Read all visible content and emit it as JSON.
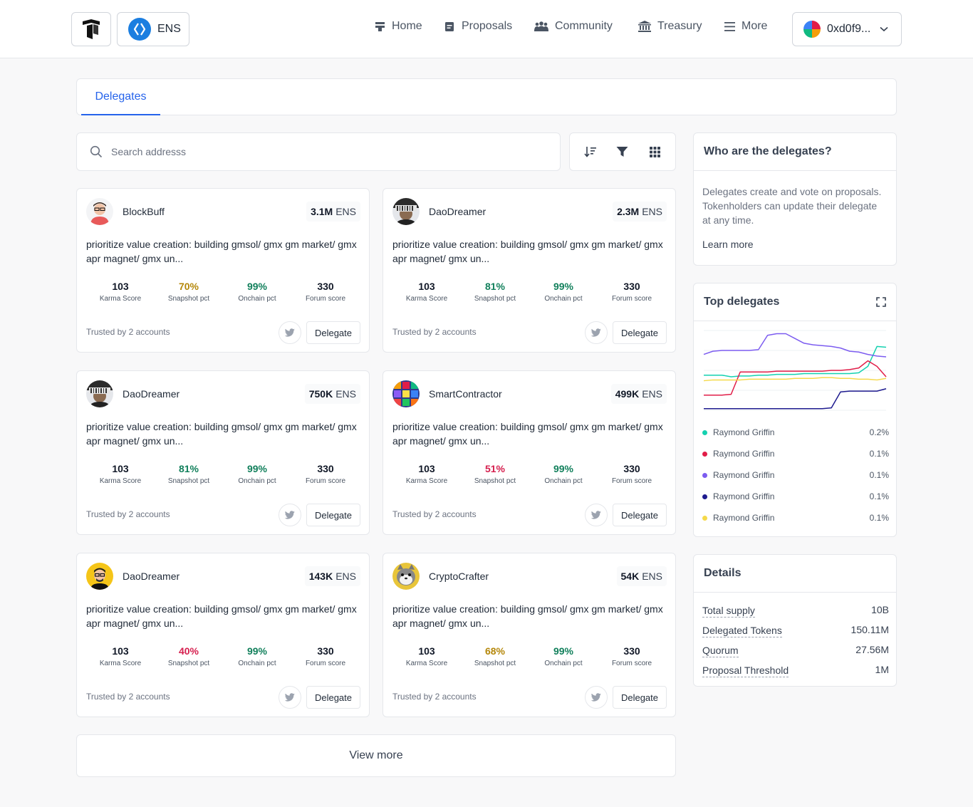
{
  "header": {
    "org_label": "ENS",
    "nav": [
      {
        "label": "Home",
        "icon": "home-icon"
      },
      {
        "label": "Proposals",
        "icon": "proposals-icon"
      },
      {
        "label": "Community",
        "icon": "community-icon"
      },
      {
        "label": "Treasury",
        "icon": "treasury-icon"
      },
      {
        "label": "More",
        "icon": "menu-icon"
      }
    ],
    "wallet_label": "0xd0f9..."
  },
  "tabs": [
    {
      "label": "Delegates",
      "active": true
    }
  ],
  "search": {
    "placeholder": "Search addresss",
    "value": ""
  },
  "delegates": [
    {
      "name": "BlockBuff",
      "balance": "3.1M",
      "unit": "ENS",
      "description": "prioritize value creation: building gmsol/ gmx gm market/ gmx apr magnet/ gmx un...",
      "karma": "103",
      "karma_label": "Karma Score",
      "snapshot": "70%",
      "snapshot_label": "Snapshot pct",
      "onchain": "99%",
      "onchain_label": "Onchain pct",
      "forum": "330",
      "forum_label": "Forum score",
      "trusted": "Trusted by 2 accounts",
      "delegate_label": "Delegate"
    },
    {
      "name": "DaoDreamer",
      "balance": "2.3M",
      "unit": "ENS",
      "description": "prioritize value creation: building gmsol/ gmx gm market/ gmx apr magnet/ gmx un...",
      "karma": "103",
      "karma_label": "Karma Score",
      "snapshot": "81%",
      "snapshot_label": "Snapshot pct",
      "onchain": "99%",
      "onchain_label": "Onchain pct",
      "forum": "330",
      "forum_label": "Forum score",
      "trusted": "Trusted by 2 accounts",
      "delegate_label": "Delegate"
    },
    {
      "name": "DaoDreamer",
      "balance": "750K",
      "unit": "ENS",
      "description": "prioritize value creation: building gmsol/ gmx gm market/ gmx apr magnet/ gmx un...",
      "karma": "103",
      "karma_label": "Karma Score",
      "snapshot": "81%",
      "snapshot_label": "Snapshot pct",
      "onchain": "99%",
      "onchain_label": "Onchain pct",
      "forum": "330",
      "forum_label": "Forum score",
      "trusted": "Trusted by 2 accounts",
      "delegate_label": "Delegate"
    },
    {
      "name": "SmartContractor",
      "balance": "499K",
      "unit": "ENS",
      "description": "prioritize value creation: building gmsol/ gmx gm market/ gmx apr magnet/ gmx un...",
      "karma": "103",
      "karma_label": "Karma Score",
      "snapshot": "51%",
      "snapshot_label": "Snapshot pct",
      "onchain": "99%",
      "onchain_label": "Onchain pct",
      "forum": "330",
      "forum_label": "Forum score",
      "trusted": "Trusted by 2 accounts",
      "delegate_label": "Delegate"
    },
    {
      "name": "DaoDreamer",
      "balance": "143K",
      "unit": "ENS",
      "description": "prioritize value creation: building gmsol/ gmx gm market/ gmx apr magnet/ gmx un...",
      "karma": "103",
      "karma_label": "Karma Score",
      "snapshot": "40%",
      "snapshot_label": "Snapshot pct",
      "onchain": "99%",
      "onchain_label": "Onchain pct",
      "forum": "330",
      "forum_label": "Forum score",
      "trusted": "Trusted by 2 accounts",
      "delegate_label": "Delegate"
    },
    {
      "name": "CryptoCrafter",
      "balance": "54K",
      "unit": "ENS",
      "description": "prioritize value creation: building gmsol/ gmx gm market/ gmx apr magnet/ gmx un...",
      "karma": "103",
      "karma_label": "Karma Score",
      "snapshot": "68%",
      "snapshot_label": "Snapshot pct",
      "onchain": "99%",
      "onchain_label": "Onchain pct",
      "forum": "330",
      "forum_label": "Forum score",
      "trusted": "Trusted by 2 accounts",
      "delegate_label": "Delegate"
    }
  ],
  "view_more_label": "View more",
  "who": {
    "title": "Who are the delegates?",
    "body": "Delegates create and vote on proposals. Tokenholders can update their delegate at any time.",
    "link": "Learn more"
  },
  "top_delegates": {
    "title": "Top delegates",
    "legend": [
      {
        "name": "Raymond Griffin",
        "pct": "0.2%",
        "color": "#14d1b0"
      },
      {
        "name": "Raymond Griffin",
        "pct": "0.1%",
        "color": "#e11d48"
      },
      {
        "name": "Raymond Griffin",
        "pct": "0.1%",
        "color": "#7c5cf0"
      },
      {
        "name": "Raymond Griffin",
        "pct": "0.1%",
        "color": "#1e1b8f"
      },
      {
        "name": "Raymond Griffin",
        "pct": "0.1%",
        "color": "#f5d94a"
      }
    ]
  },
  "chart_data": {
    "type": "line",
    "x": [
      0,
      1,
      2,
      3,
      4,
      5,
      6,
      7,
      8,
      9,
      10,
      11,
      12,
      13,
      14,
      15,
      16,
      17,
      18,
      19,
      20
    ],
    "series": [
      {
        "color": "#14d1b0",
        "values": [
          0.44,
          0.44,
          0.44,
          0.42,
          0.43,
          0.43,
          0.44,
          0.44,
          0.45,
          0.45,
          0.45,
          0.46,
          0.46,
          0.46,
          0.46,
          0.46,
          0.46,
          0.47,
          0.55,
          0.8,
          0.79
        ]
      },
      {
        "color": "#e11d48",
        "values": [
          0.19,
          0.19,
          0.19,
          0.2,
          0.48,
          0.48,
          0.48,
          0.48,
          0.49,
          0.49,
          0.49,
          0.49,
          0.49,
          0.49,
          0.5,
          0.5,
          0.51,
          0.53,
          0.62,
          0.55,
          0.42
        ]
      },
      {
        "color": "#7c5cf0",
        "values": [
          0.7,
          0.74,
          0.75,
          0.75,
          0.75,
          0.75,
          0.76,
          0.94,
          0.96,
          0.96,
          0.9,
          0.84,
          0.82,
          0.81,
          0.8,
          0.78,
          0.74,
          0.73,
          0.7,
          0.68,
          0.67
        ]
      },
      {
        "color": "#1e1b8f",
        "values": [
          0.02,
          0.02,
          0.02,
          0.02,
          0.02,
          0.02,
          0.02,
          0.02,
          0.02,
          0.02,
          0.02,
          0.02,
          0.02,
          0.02,
          0.03,
          0.23,
          0.24,
          0.24,
          0.24,
          0.24,
          0.27
        ]
      },
      {
        "color": "#f5d94a",
        "values": [
          0.37,
          0.38,
          0.38,
          0.38,
          0.38,
          0.39,
          0.39,
          0.39,
          0.39,
          0.39,
          0.4,
          0.4,
          0.4,
          0.41,
          0.41,
          0.4,
          0.4,
          0.39,
          0.39,
          0.38,
          0.4
        ]
      }
    ],
    "ylim": [
      0,
      1
    ],
    "grid": true
  },
  "details": {
    "title": "Details",
    "rows": [
      {
        "k": "Total supply",
        "v": "10B"
      },
      {
        "k": "Delegated Tokens",
        "v": "150.11M"
      },
      {
        "k": "Quorum",
        "v": "27.56M"
      },
      {
        "k": "Proposal Threshold",
        "v": "1M"
      }
    ]
  }
}
